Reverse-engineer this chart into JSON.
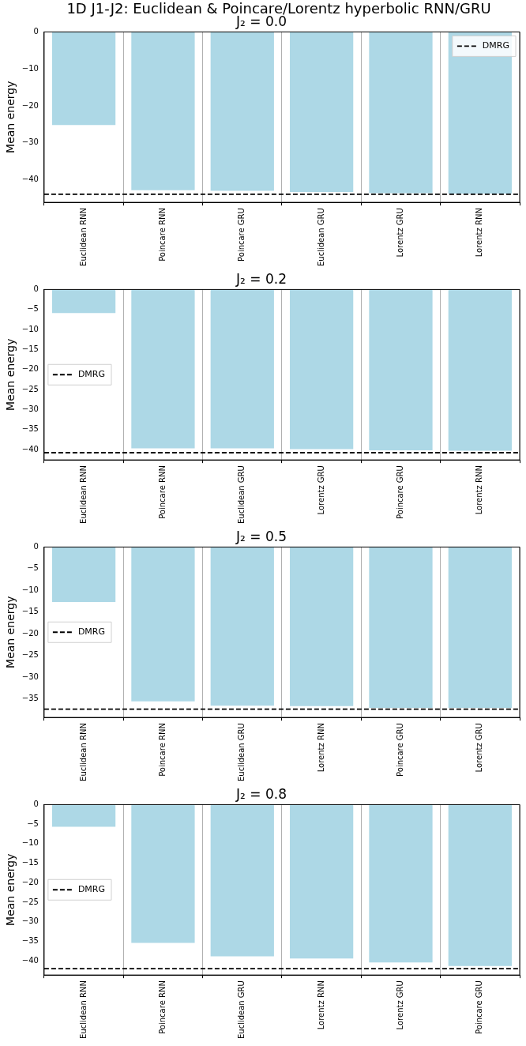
{
  "chart_data": [
    {
      "type": "bar",
      "title": "J₂ = 0.0",
      "annotations": [
        "1D J1-J2: Euclidean & Poincare/Lorentz hyperbolic RNN/GRU"
      ],
      "ylabel": "Mean energy",
      "categories": [
        "Euclidean RNN",
        "Poincare RNN",
        "Poincare GRU",
        "Euclidean GRU",
        "Lorentz GRU",
        "Lorentz RNN"
      ],
      "values": [
        -25.2,
        -42.8,
        -43.0,
        -43.3,
        -43.6,
        -43.7
      ],
      "color": "#add8e6",
      "ylim": [
        -46.1,
        0
      ],
      "yticks": [
        -40,
        -30,
        -20,
        -10,
        0
      ],
      "grid": "x",
      "legend": "top right",
      "ref_lines": [
        {
          "axis": "y",
          "value": -43.9,
          "label": "DMRG",
          "color": "#000000",
          "line_style": "dashed"
        }
      ]
    },
    {
      "type": "bar",
      "title": "J₂ = 0.2",
      "ylabel": "Mean energy",
      "categories": [
        "Euclidean RNN",
        "Poincare RNN",
        "Euclidean GRU",
        "Lorentz GRU",
        "Poincare GRU",
        "Lorentz RNN"
      ],
      "values": [
        -5.9,
        -39.7,
        -39.7,
        -39.9,
        -40.2,
        -40.3
      ],
      "color": "#add8e6",
      "ylim": [
        -42.6,
        0
      ],
      "yticks": [
        -40,
        -35,
        -30,
        -25,
        -20,
        -15,
        -10,
        -5,
        0
      ],
      "grid": "x",
      "legend": "left",
      "ref_lines": [
        {
          "axis": "y",
          "value": -40.8,
          "label": "DMRG",
          "color": "#000000",
          "line_style": "dashed"
        }
      ]
    },
    {
      "type": "bar",
      "title": "J₂ = 0.5",
      "ylabel": "Mean energy",
      "categories": [
        "Euclidean RNN",
        "Poincare RNN",
        "Euclidean GRU",
        "Lorentz RNN",
        "Poincare GRU",
        "Lorentz GRU"
      ],
      "values": [
        -12.7,
        -35.6,
        -36.6,
        -36.7,
        -37.1,
        -37.1
      ],
      "color": "#add8e6",
      "ylim": [
        -39.3,
        0
      ],
      "yticks": [
        -35,
        -30,
        -25,
        -20,
        -15,
        -10,
        -5,
        0
      ],
      "grid": "x",
      "legend": "left",
      "ref_lines": [
        {
          "axis": "y",
          "value": -37.4,
          "label": "DMRG",
          "color": "#000000",
          "line_style": "dashed"
        }
      ]
    },
    {
      "type": "bar",
      "title": "J₂ = 0.8",
      "ylabel": "Mean energy",
      "categories": [
        "Euclidean RNN",
        "Poincare RNN",
        "Euclidean GRU",
        "Lorentz RNN",
        "Lorentz GRU",
        "Poincare GRU"
      ],
      "values": [
        -5.7,
        -35.4,
        -38.8,
        -39.4,
        -40.4,
        -41.3
      ],
      "color": "#add8e6",
      "ylim": [
        -43.6,
        0
      ],
      "yticks": [
        -40,
        -35,
        -30,
        -25,
        -20,
        -15,
        -10,
        -5,
        0
      ],
      "grid": "x",
      "legend": "left",
      "ref_lines": [
        {
          "axis": "y",
          "value": -42.0,
          "label": "DMRG",
          "color": "#000000",
          "line_style": "dashed"
        }
      ]
    }
  ]
}
